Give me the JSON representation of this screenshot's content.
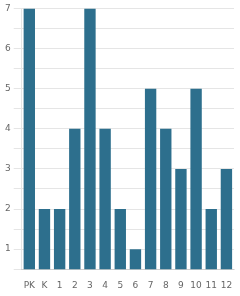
{
  "chart_data": {
    "type": "bar",
    "categories": [
      "PK",
      "K",
      "1",
      "2",
      "3",
      "4",
      "5",
      "6",
      "7",
      "8",
      "9",
      "10",
      "11",
      "12"
    ],
    "values": [
      7,
      2,
      2,
      4,
      7,
      4,
      2,
      1,
      5,
      4,
      3,
      5,
      2,
      3
    ],
    "color": "#2d6f8d",
    "ylim": [
      0.5,
      7
    ],
    "yticks": [
      {
        "value": 0.5,
        "label": ""
      },
      1,
      {
        "value": 1.5,
        "label": ""
      },
      2,
      {
        "value": 2.5,
        "label": ""
      },
      3,
      {
        "value": 3.5,
        "label": ""
      },
      4,
      {
        "value": 4.5,
        "label": ""
      },
      5,
      {
        "value": 5.5,
        "label": ""
      },
      6,
      {
        "value": 6.5,
        "label": ""
      },
      7
    ],
    "grid": true
  }
}
